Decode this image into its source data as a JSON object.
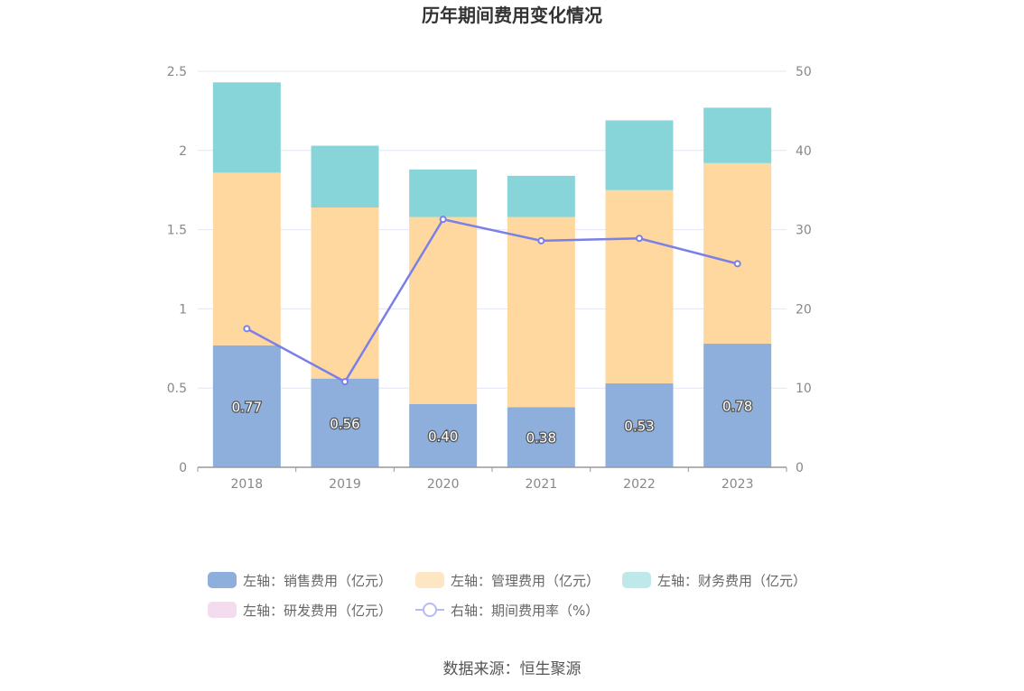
{
  "chart_data": {
    "type": "bar",
    "stacked": true,
    "title": "历年期间费用变化情况",
    "categories": [
      "2018",
      "2019",
      "2020",
      "2021",
      "2022",
      "2023"
    ],
    "y_left": {
      "ylim": [
        0,
        2.5
      ],
      "ticks": [
        "0",
        "0.5",
        "1",
        "1.5",
        "2",
        "2.5"
      ]
    },
    "y_right": {
      "ylim": [
        0,
        50
      ],
      "ticks": [
        "0",
        "10",
        "20",
        "30",
        "40",
        "50"
      ]
    },
    "grid": true,
    "legend_position": "bottom",
    "series": [
      {
        "name": "左轴：销售费用（亿元）",
        "axis": "left",
        "type": "bar",
        "color": "#8eaedb",
        "values": [
          0.77,
          0.56,
          0.4,
          0.38,
          0.53,
          0.78
        ],
        "labels": [
          "0.77",
          "0.56",
          "0.40",
          "0.38",
          "0.53",
          "0.78"
        ]
      },
      {
        "name": "左轴：管理费用（亿元）",
        "axis": "left",
        "type": "bar",
        "color": "#fed89e",
        "values": [
          1.09,
          1.08,
          1.18,
          1.2,
          1.22,
          1.14
        ]
      },
      {
        "name": "左轴：财务费用（亿元）",
        "axis": "left",
        "type": "bar",
        "color": "#88d5d9",
        "values": [
          0.57,
          0.39,
          0.3,
          0.26,
          0.44,
          0.35
        ]
      },
      {
        "name": "左轴：研发费用（亿元）",
        "axis": "left",
        "type": "bar",
        "color": "#f2dced",
        "values": [
          0,
          0,
          0,
          0,
          0,
          0
        ]
      },
      {
        "name": "右轴：期间费用率（%）",
        "axis": "right",
        "type": "line",
        "color": "#7b7fe8",
        "values": [
          17.5,
          10.8,
          31.3,
          28.6,
          28.9,
          25.7
        ]
      }
    ],
    "legend_colors": [
      "#8eaedb",
      "#fde6c4",
      "#bfe8ea",
      "#f2dced",
      "#7b7fe8"
    ]
  },
  "source": "数据来源：恒生聚源"
}
